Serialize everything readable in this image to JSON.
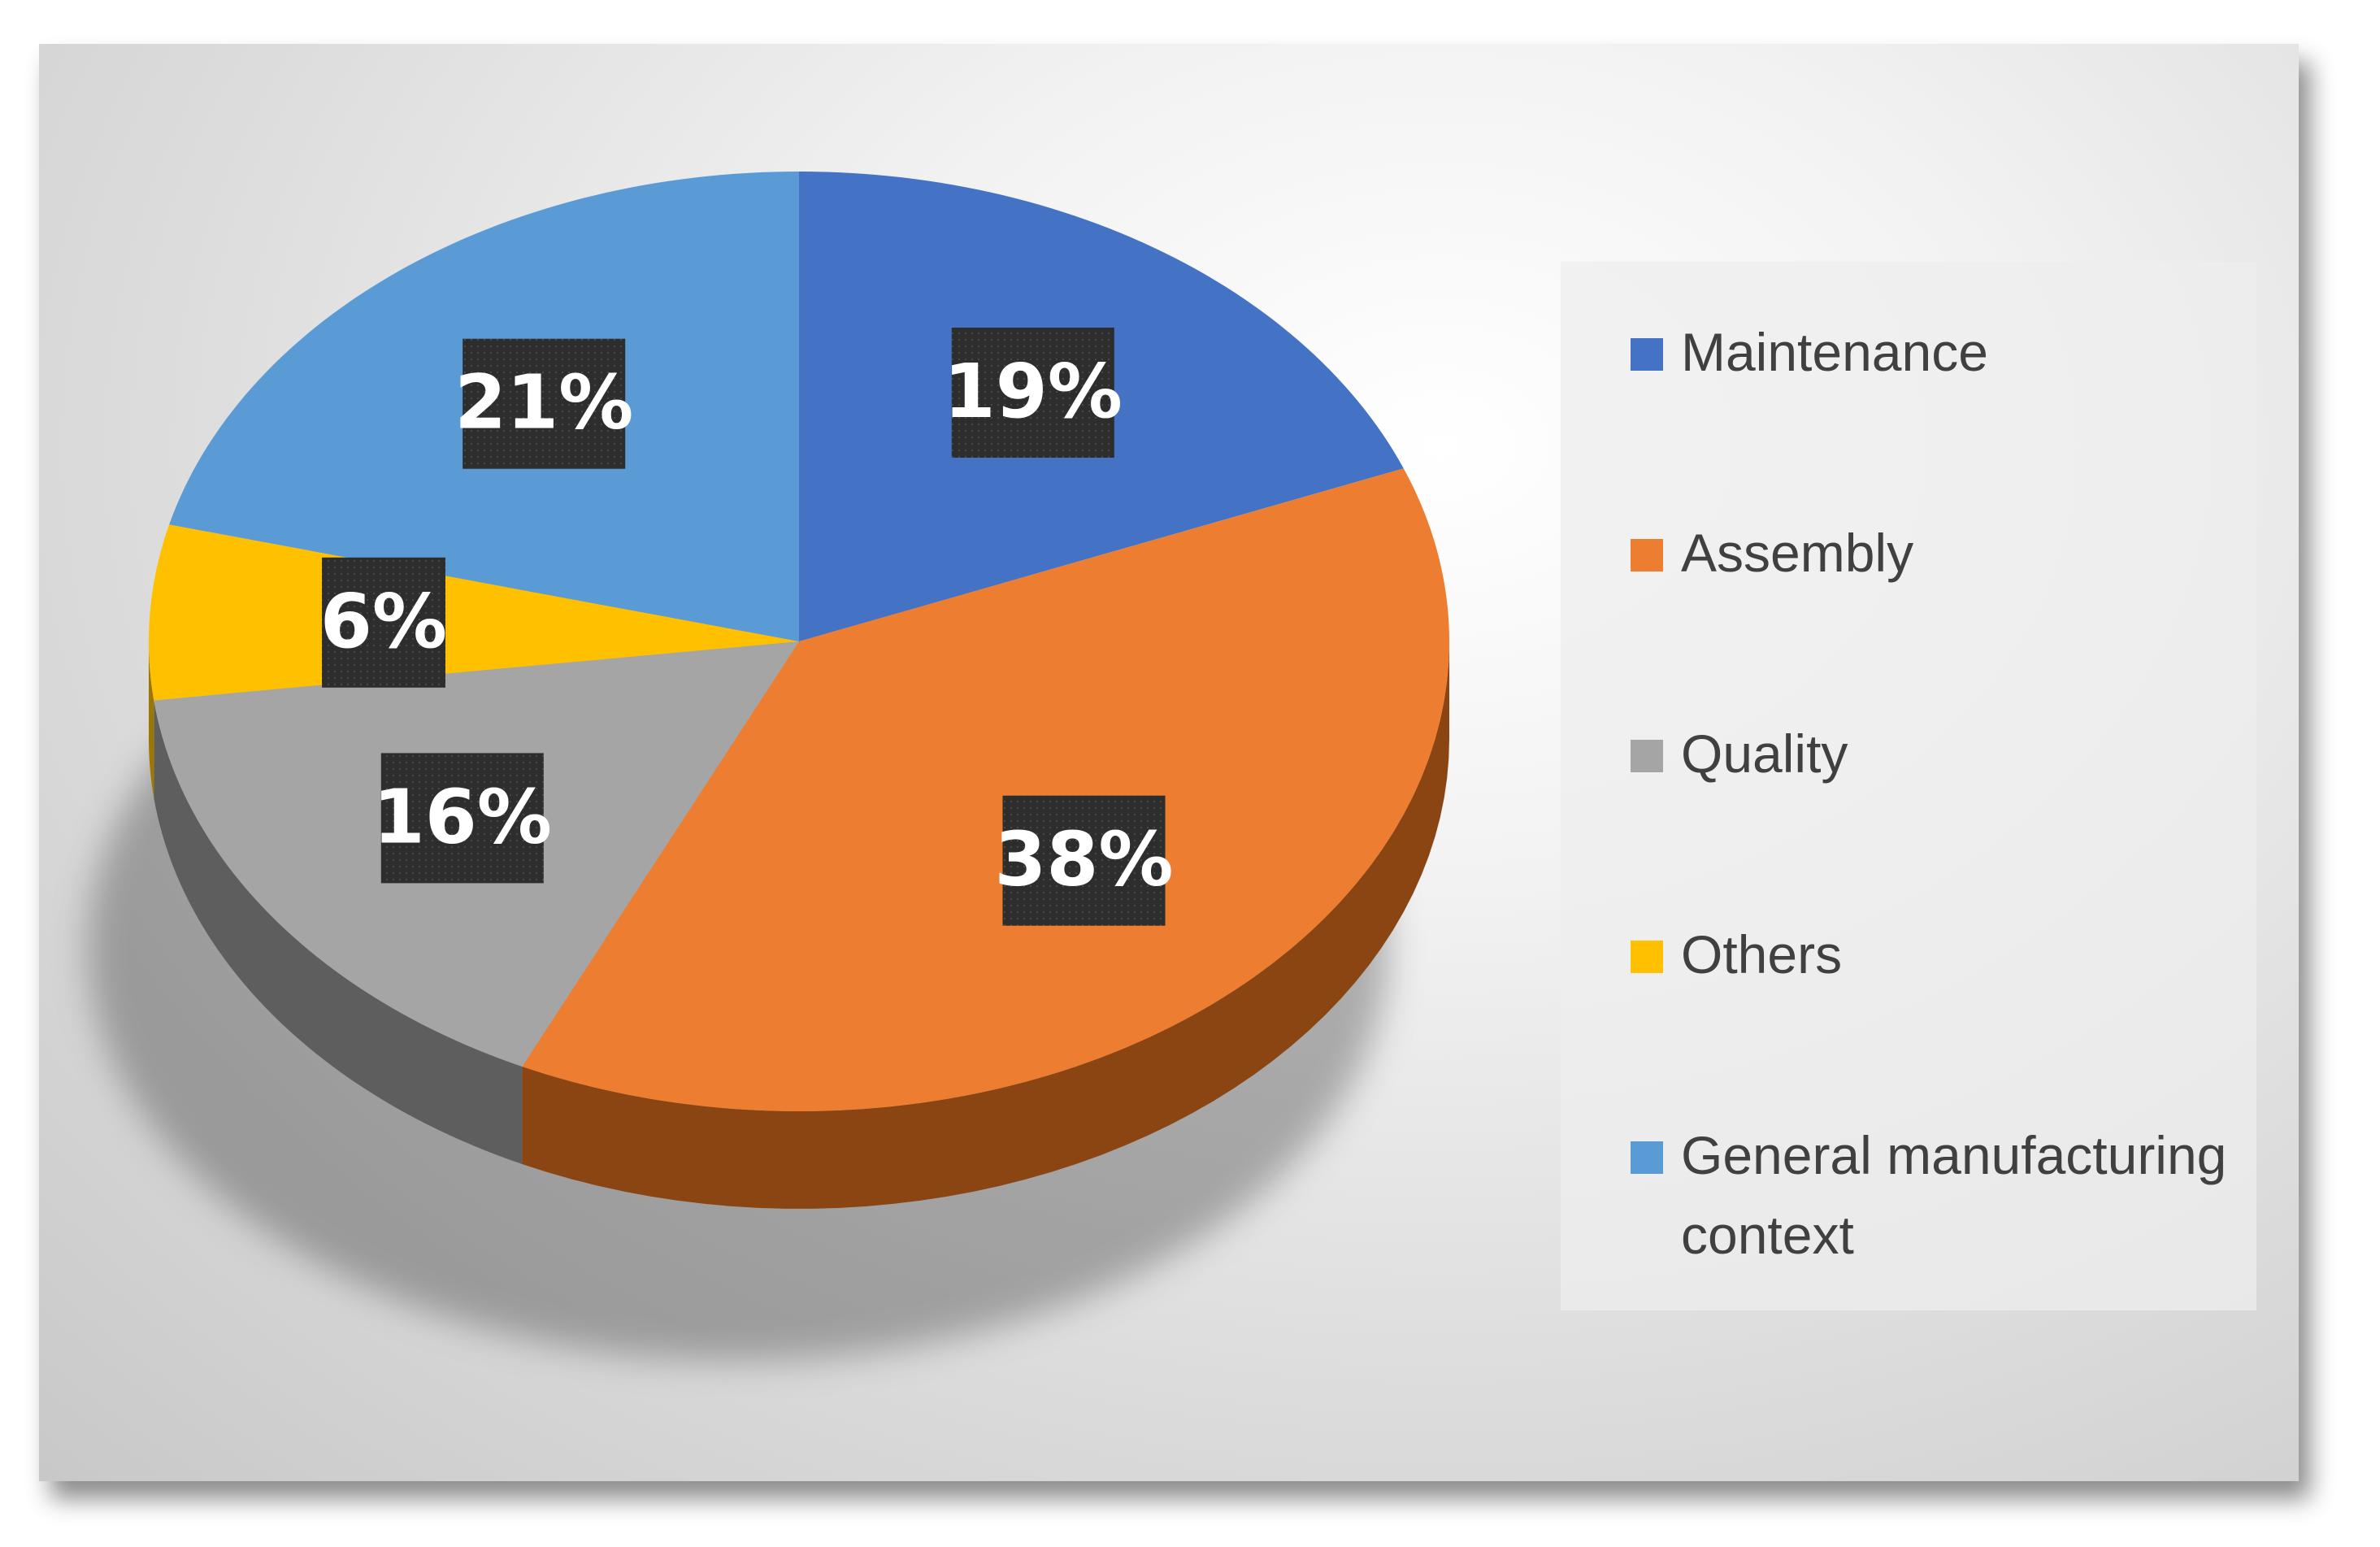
{
  "chart_data": {
    "type": "pie",
    "categories": [
      "Maintenance",
      "Assembly",
      "Quality",
      "Others",
      "General manufacturing context"
    ],
    "values": [
      19,
      38,
      16,
      6,
      21
    ],
    "data_labels": [
      "19%",
      "38%",
      "16%",
      "6%",
      "21%"
    ],
    "colors": [
      "#4472c4",
      "#ed7d31",
      "#a5a5a5",
      "#ffc000",
      "#5b9bd5"
    ],
    "side_colors": [
      "#2b4d8e",
      "#8a4513",
      "#5e5e5e",
      "#9e7700",
      "#3a6b99"
    ],
    "legend_position": "right",
    "style": "3d"
  }
}
